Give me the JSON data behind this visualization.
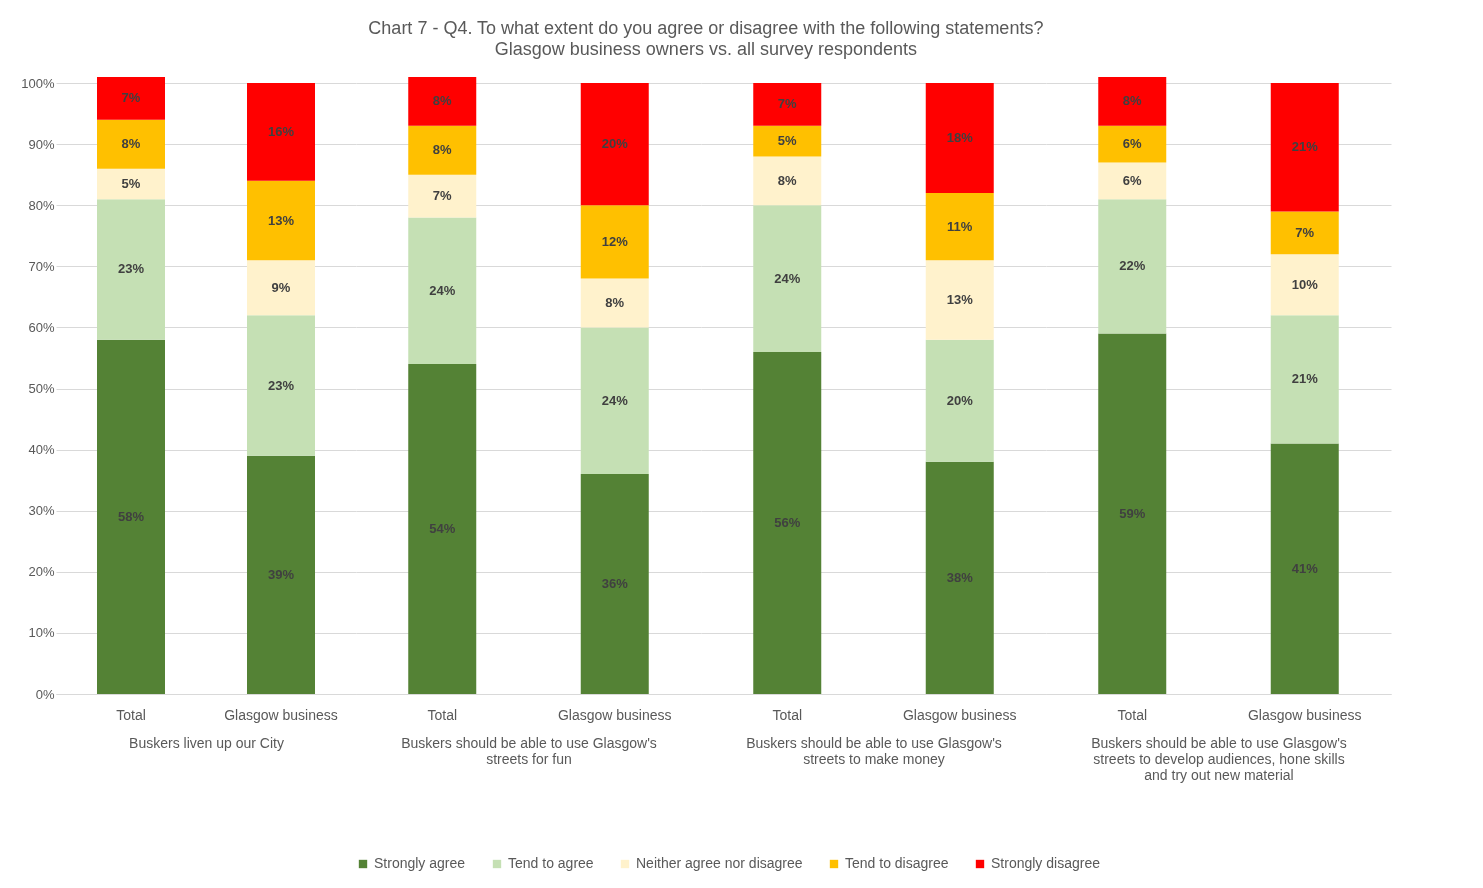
{
  "chart_data": {
    "type": "bar",
    "stacked": true,
    "title": "Chart 7 - Q4. To what extent do you agree or disagree with the following statements?",
    "subtitle": "Glasgow business owners vs. all survey respondents",
    "categories": [
      "Total",
      "Glasgow business",
      "Total",
      "Glasgow business",
      "Total",
      "Glasgow business",
      "Total",
      "Glasgow business"
    ],
    "annotations": [
      "Buskers liven up our City",
      "Buskers should be able to use Glasgow's streets for fun",
      "Buskers should be able to use Glasgow's streets to make money",
      "Buskers should be able to use Glasgow's streets to develop audiences, hone skills and try out new material"
    ],
    "series": [
      {
        "name": "Strongly agree",
        "color": "#548235",
        "values": [
          58,
          39,
          54,
          36,
          56,
          38,
          59,
          41
        ],
        "value_labels": [
          "58%",
          "39%",
          "54%",
          "36%",
          "56%",
          "38%",
          "59%",
          "41%"
        ]
      },
      {
        "name": "Tend to agree",
        "color": "#c5e0b4",
        "values": [
          23,
          23,
          24,
          24,
          24,
          20,
          22,
          21
        ],
        "value_labels": [
          "23%",
          "23%",
          "24%",
          "24%",
          "24%",
          "20%",
          "22%",
          "21%"
        ]
      },
      {
        "name": "Neither agree nor disagree",
        "color": "#fff2cc",
        "values": [
          5,
          9,
          7,
          8,
          8,
          13,
          6,
          10
        ],
        "value_labels": [
          "5%",
          "9%",
          "7%",
          "8%",
          "8%",
          "13%",
          "6%",
          "10%"
        ]
      },
      {
        "name": "Tend to disagree",
        "color": "#ffc000",
        "values": [
          8,
          13,
          8,
          12,
          5,
          11,
          6,
          7
        ],
        "value_labels": [
          "8%",
          "13%",
          "8%",
          "12%",
          "5%",
          "11%",
          "6%",
          "7%"
        ]
      },
      {
        "name": "Strongly disagree",
        "color": "#ff0000",
        "values": [
          7,
          16,
          8,
          20,
          7,
          18,
          8,
          21
        ],
        "value_labels": [
          "7%",
          "16%",
          "8%",
          "20%",
          "7%",
          "18%",
          "8%",
          "21%"
        ]
      }
    ],
    "ylim": [
      0,
      101
    ],
    "yticks": [
      {
        "value": 0,
        "label": "0%"
      },
      {
        "value": 10,
        "label": "10%"
      },
      {
        "value": 20,
        "label": "20%"
      },
      {
        "value": 30,
        "label": "30%"
      },
      {
        "value": 40,
        "label": "40%"
      },
      {
        "value": 50,
        "label": "50%"
      },
      {
        "value": 60,
        "label": "60%"
      },
      {
        "value": 70,
        "label": "70%"
      },
      {
        "value": 80,
        "label": "80%"
      },
      {
        "value": 90,
        "label": "90%"
      },
      {
        "value": 100,
        "label": "100%"
      }
    ],
    "grid": "y",
    "legend": "bottom"
  }
}
